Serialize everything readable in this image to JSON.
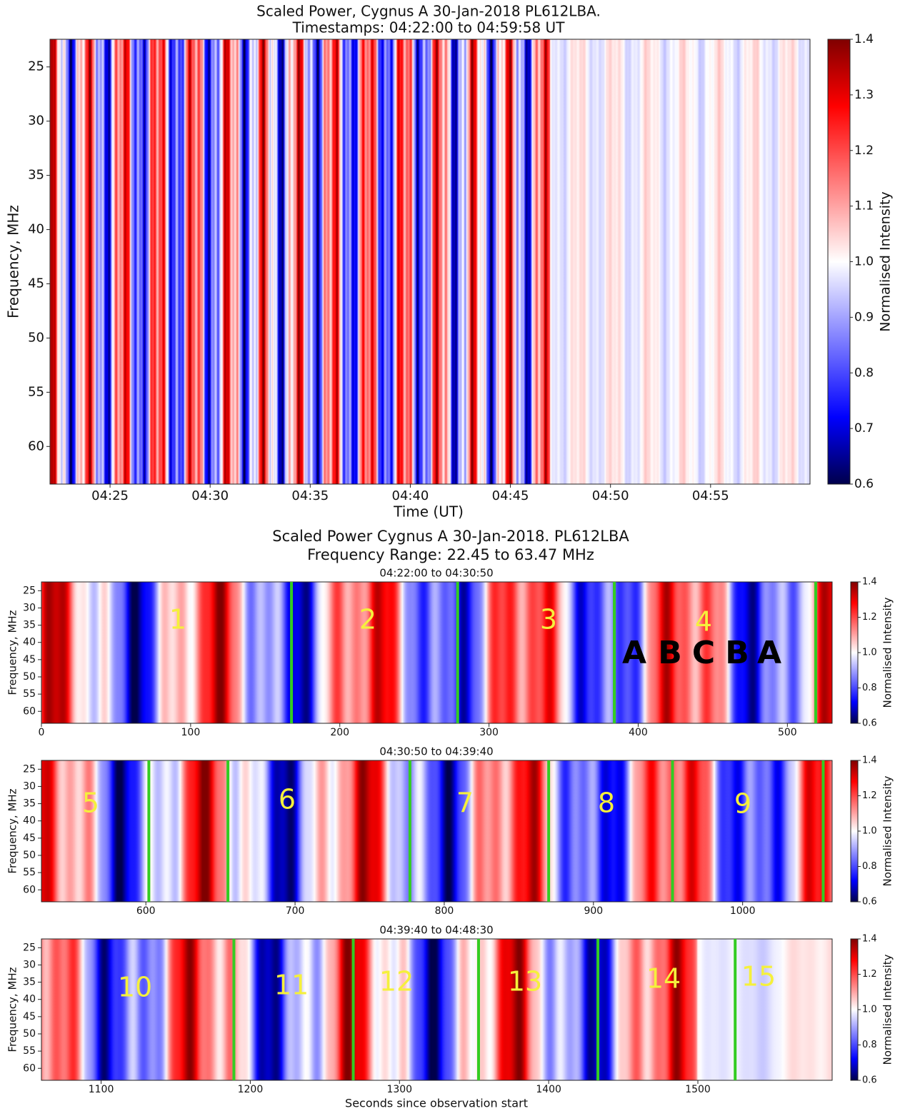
{
  "chart_data": [
    {
      "type": "heatmap",
      "title": "Scaled Power, Cygnus A 30-Jan-2018 PL612LBA.",
      "subtitle": "Timestamps: 04:22:00 to 04:59:58 UT",
      "xlabel": "Time (UT)",
      "ylabel": "Frequency, MHz",
      "colorbar_label": "Normalised Intensity",
      "xlim": [
        0,
        2278
      ],
      "xticks": [
        {
          "value": 180,
          "label": "04:25"
        },
        {
          "value": 480,
          "label": "04:30"
        },
        {
          "value": 780,
          "label": "04:35"
        },
        {
          "value": 1080,
          "label": "04:40"
        },
        {
          "value": 1380,
          "label": "04:45"
        },
        {
          "value": 1680,
          "label": "04:50"
        },
        {
          "value": 1980,
          "label": "04:55"
        }
      ],
      "ylim": [
        22.45,
        63.47
      ],
      "y_inverted": true,
      "yticks": [
        25,
        30,
        35,
        40,
        45,
        50,
        55,
        60
      ],
      "clim": [
        0.6,
        1.4
      ],
      "cticks": [
        0.6,
        0.7,
        0.8,
        0.9,
        {
          "value": 1,
          "label": "1.0"
        },
        1.1,
        1.2,
        1.3,
        1.4
      ]
    },
    {
      "type": "heatmap",
      "suptitle": [
        "Scaled Power Cygnus A 30-Jan-2018. PL612LBA",
        "Frequency Range: 22.45 to 63.47 MHz"
      ],
      "title": "04:22:00 to 04:30:50",
      "ylabel": "Frequency, MHz",
      "colorbar_label": "Normalised Intensity",
      "xlim": [
        0,
        530
      ],
      "xticks": [
        0,
        100,
        200,
        300,
        400,
        500
      ],
      "ylim": [
        22.45,
        63.47
      ],
      "y_inverted": true,
      "yticks": [
        25,
        30,
        35,
        40,
        45,
        50,
        55,
        60
      ],
      "clim": [
        0.6,
        1.4
      ],
      "cticks": [
        0.6,
        0.8,
        {
          "value": 1,
          "label": "1.0"
        },
        1.2,
        1.4
      ],
      "dividers": [
        167.6,
        279,
        384,
        519
      ],
      "divider_color": "#33cc22",
      "annotations": [
        "1",
        "2",
        "3",
        "4"
      ],
      "letters": [
        "A",
        "B",
        "C",
        "B",
        "A"
      ]
    },
    {
      "type": "heatmap",
      "title": "04:30:50 to 04:39:40",
      "ylabel": "Frequency, MHz",
      "colorbar_label": "Normalised Intensity",
      "xlim": [
        530,
        1060
      ],
      "xticks": [
        600,
        700,
        800,
        900,
        1000
      ],
      "ylim": [
        22.45,
        63.47
      ],
      "y_inverted": true,
      "yticks": [
        25,
        30,
        35,
        40,
        45,
        50,
        55,
        60
      ],
      "clim": [
        0.6,
        1.4
      ],
      "cticks": [
        0.6,
        0.8,
        {
          "value": 1,
          "label": "1.0"
        },
        1.2,
        1.4
      ],
      "dividers": [
        602,
        655,
        777,
        870,
        953,
        1054
      ],
      "divider_color": "#33cc22",
      "annotations": [
        "5",
        "6",
        "7",
        "8",
        "9"
      ]
    },
    {
      "type": "heatmap",
      "title": "04:39:40 to 04:48:30",
      "xlabel": "Seconds since observation start",
      "ylabel": "Frequency, MHz",
      "colorbar_label": "Normalised Intensity",
      "xlim": [
        1060,
        1590
      ],
      "xticks": [
        1100,
        1200,
        1300,
        1400,
        1500
      ],
      "ylim": [
        22.45,
        63.47
      ],
      "y_inverted": true,
      "yticks": [
        25,
        30,
        35,
        40,
        45,
        50,
        55,
        60
      ],
      "clim": [
        0.6,
        1.4
      ],
      "cticks": [
        0.6,
        0.8,
        {
          "value": 1,
          "label": "1.0"
        },
        1.2,
        1.4
      ],
      "dividers": [
        1189,
        1269,
        1353,
        1433,
        1525
      ],
      "divider_color": "#33cc22",
      "annotations": [
        "10",
        "11",
        "12",
        "13",
        "14",
        "15"
      ]
    }
  ]
}
